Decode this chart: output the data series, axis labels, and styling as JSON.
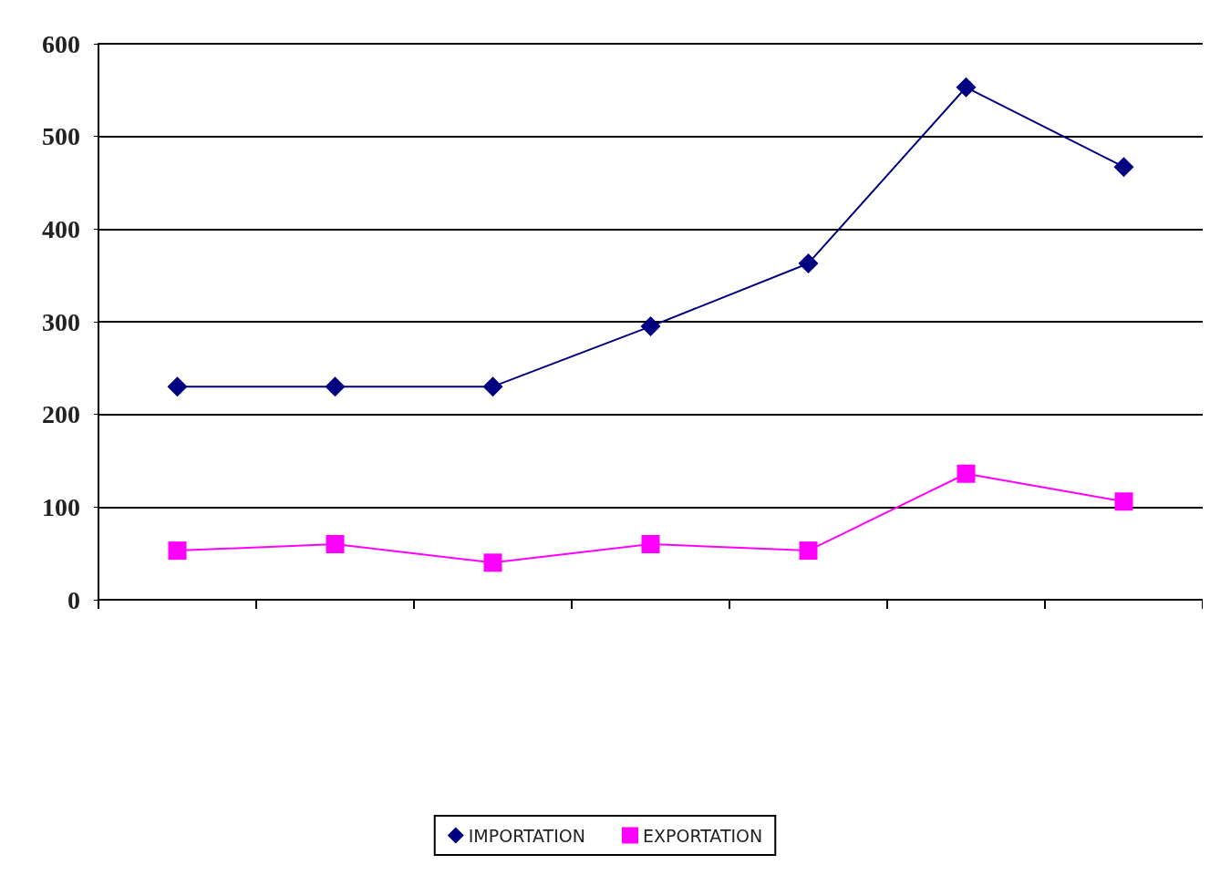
{
  "chart_data": {
    "type": "line",
    "categories": [
      null,
      null,
      null,
      null,
      null,
      null,
      null
    ],
    "series": [
      {
        "name": "IMPORTATION",
        "color": "#000080",
        "marker": "diamond",
        "values": [
          230,
          230,
          230,
          295,
          363,
          553,
          467
        ]
      },
      {
        "name": "EXPORTATION",
        "color": "#ff00ff",
        "marker": "square",
        "values": [
          53,
          60,
          40,
          60,
          53,
          136,
          106
        ]
      }
    ],
    "ylim": [
      0,
      600
    ],
    "yticks": [
      0,
      100,
      200,
      300,
      400,
      500,
      600
    ],
    "grid": "y",
    "legend": "bottom"
  }
}
